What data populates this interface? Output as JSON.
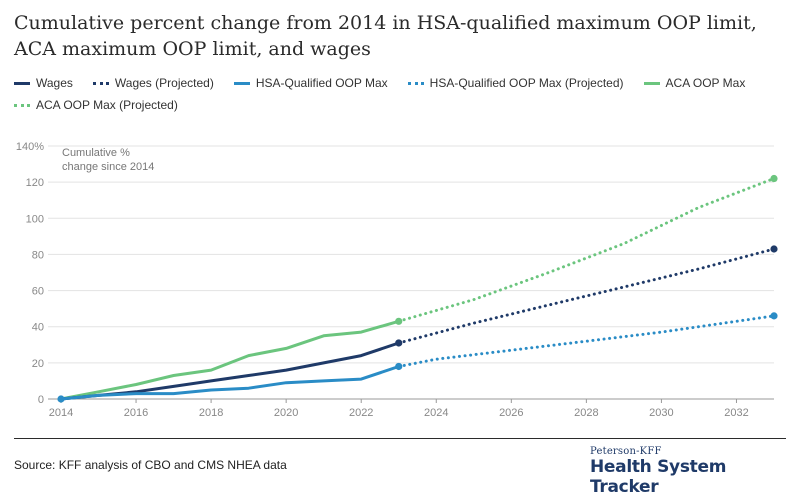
{
  "title": "Cumulative percent change from 2014 in HSA-qualified maximum OOP limit, ACA maximum OOP limit, and wages",
  "legend": {
    "row1": [
      {
        "label": "Wages",
        "color": "#1f3a68",
        "style": "solid"
      },
      {
        "label": "Wages (Projected)",
        "color": "#1f3a68",
        "style": "dotted"
      },
      {
        "label": "HSA-Qualified OOP Max",
        "color": "#2a8cc6",
        "style": "solid"
      },
      {
        "label": "HSA-Qualified OOP Max (Projected)",
        "color": "#2a8cc6",
        "style": "dotted"
      },
      {
        "label": "ACA OOP Max",
        "color": "#6bc57e",
        "style": "solid"
      }
    ],
    "row2": [
      {
        "label": "ACA OOP Max (Projected)",
        "color": "#6bc57e",
        "style": "dotted"
      }
    ]
  },
  "chart_data": {
    "type": "line",
    "title": "Cumulative percent change from 2014 in HSA-qualified maximum OOP limit, ACA maximum OOP limit, and wages",
    "annotation": [
      "Cumulative %",
      "change since 2014"
    ],
    "xlim": [
      2014,
      2033
    ],
    "ylim": [
      0,
      140
    ],
    "x_ticks": [
      2014,
      2016,
      2018,
      2020,
      2022,
      2024,
      2026,
      2028,
      2030,
      2032
    ],
    "y_ticks": [
      0,
      20,
      40,
      60,
      80,
      100,
      120,
      140
    ],
    "y_tick_labels": [
      "0",
      "20",
      "40",
      "60",
      "80",
      "100",
      "120",
      "140%"
    ],
    "grid": true,
    "series": [
      {
        "name": "ACA OOP Max",
        "color": "#6bc57e",
        "style": "solid",
        "x": [
          2014,
          2015,
          2016,
          2017,
          2018,
          2019,
          2020,
          2021,
          2022,
          2023
        ],
        "values": [
          0,
          4,
          8,
          13,
          16,
          24,
          28,
          35,
          37,
          43
        ],
        "end_marker": false
      },
      {
        "name": "ACA OOP Max (Projected)",
        "color": "#6bc57e",
        "style": "dotted",
        "x": [
          2023,
          2025,
          2027,
          2029,
          2031,
          2033
        ],
        "values": [
          43,
          55,
          70,
          86,
          106,
          122
        ],
        "end_marker": true,
        "start_marker": true
      },
      {
        "name": "Wages",
        "color": "#1f3a68",
        "style": "solid",
        "x": [
          2014,
          2015,
          2016,
          2017,
          2018,
          2019,
          2020,
          2021,
          2022,
          2023
        ],
        "values": [
          0,
          2,
          4,
          7,
          10,
          13,
          16,
          20,
          24,
          31
        ],
        "end_marker": false
      },
      {
        "name": "Wages (Projected)",
        "color": "#1f3a68",
        "style": "dotted",
        "x": [
          2023,
          2025,
          2027,
          2029,
          2031,
          2033
        ],
        "values": [
          31,
          42,
          52,
          62,
          72,
          83
        ],
        "end_marker": true,
        "start_marker": true
      },
      {
        "name": "HSA-Qualified OOP Max",
        "color": "#2a8cc6",
        "style": "solid",
        "x": [
          2014,
          2015,
          2016,
          2017,
          2018,
          2019,
          2020,
          2021,
          2022,
          2023
        ],
        "values": [
          0,
          2,
          3,
          3,
          5,
          6,
          9,
          10,
          11,
          18
        ],
        "end_marker": false,
        "start_marker": true
      },
      {
        "name": "HSA-Qualified OOP Max (Projected)",
        "color": "#2a8cc6",
        "style": "dotted",
        "x": [
          2023,
          2024,
          2026,
          2028,
          2030,
          2032,
          2033
        ],
        "values": [
          18,
          22,
          27,
          32,
          37,
          43,
          46
        ],
        "end_marker": true,
        "start_marker": true
      }
    ]
  },
  "footer": {
    "source": "Source: KFF analysis of CBO and CMS NHEA data",
    "brand_top": "Peterson-KFF",
    "brand_main": "Health System Tracker"
  }
}
